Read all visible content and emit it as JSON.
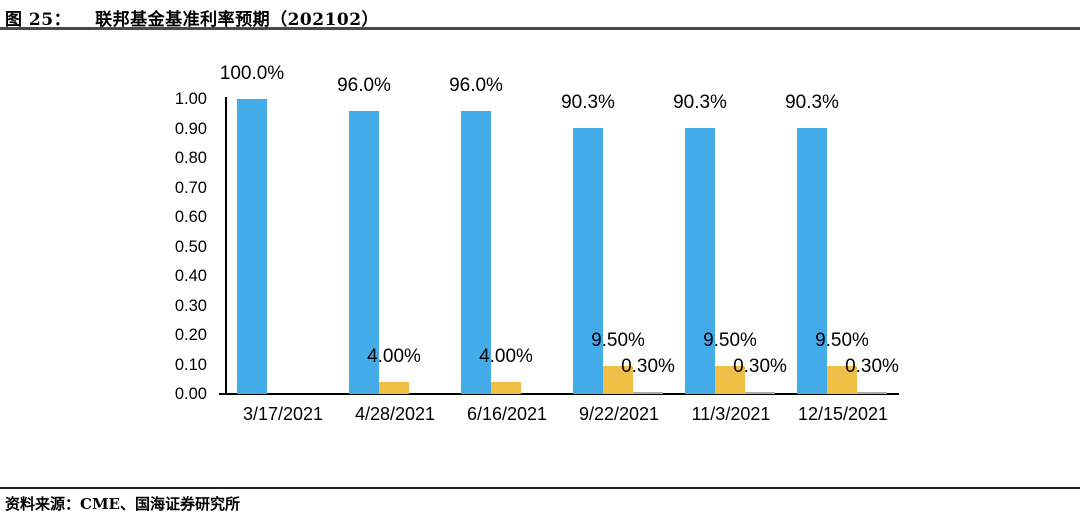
{
  "header": {
    "figure_label": "图 25：",
    "title": "联邦基金基准利率预期（202102）"
  },
  "footer": {
    "source_label": "资料来源：",
    "source_text": "CME、国海证券研究所"
  },
  "chart_data": {
    "type": "bar",
    "title": "联邦基金基准利率预期（202102）",
    "categories": [
      "3/17/2021",
      "4/28/2021",
      "6/16/2021",
      "9/22/2021",
      "11/3/2021",
      "12/15/2021"
    ],
    "series": [
      {
        "name": "blue-series",
        "color": "#42ACE8",
        "values": [
          1.0,
          0.96,
          0.96,
          0.903,
          0.903,
          0.903
        ],
        "labels": [
          "100.0%",
          "96.0%",
          "96.0%",
          "90.3%",
          "90.3%",
          "90.3%"
        ]
      },
      {
        "name": "yellow-series",
        "color": "#F1BF45",
        "values": [
          null,
          0.04,
          0.04,
          0.095,
          0.095,
          0.095
        ],
        "labels": [
          "",
          "4.00%",
          "4.00%",
          "9.50%",
          "9.50%",
          "9.50%"
        ]
      },
      {
        "name": "gray-series",
        "color": "#ABABAB",
        "values": [
          null,
          null,
          null,
          0.003,
          0.003,
          0.003
        ],
        "labels": [
          "",
          "",
          "",
          "0.30%",
          "0.30%",
          "0.30%"
        ]
      }
    ],
    "xlabel": "",
    "ylabel": "",
    "ylim": [
      0,
      1.0
    ],
    "ytick_step": 0.1,
    "yticks": [
      "1.00",
      "0.90",
      "0.80",
      "0.70",
      "0.60",
      "0.50",
      "0.40",
      "0.30",
      "0.20",
      "0.10",
      "0.00"
    ],
    "legend": "none",
    "grid": false
  }
}
